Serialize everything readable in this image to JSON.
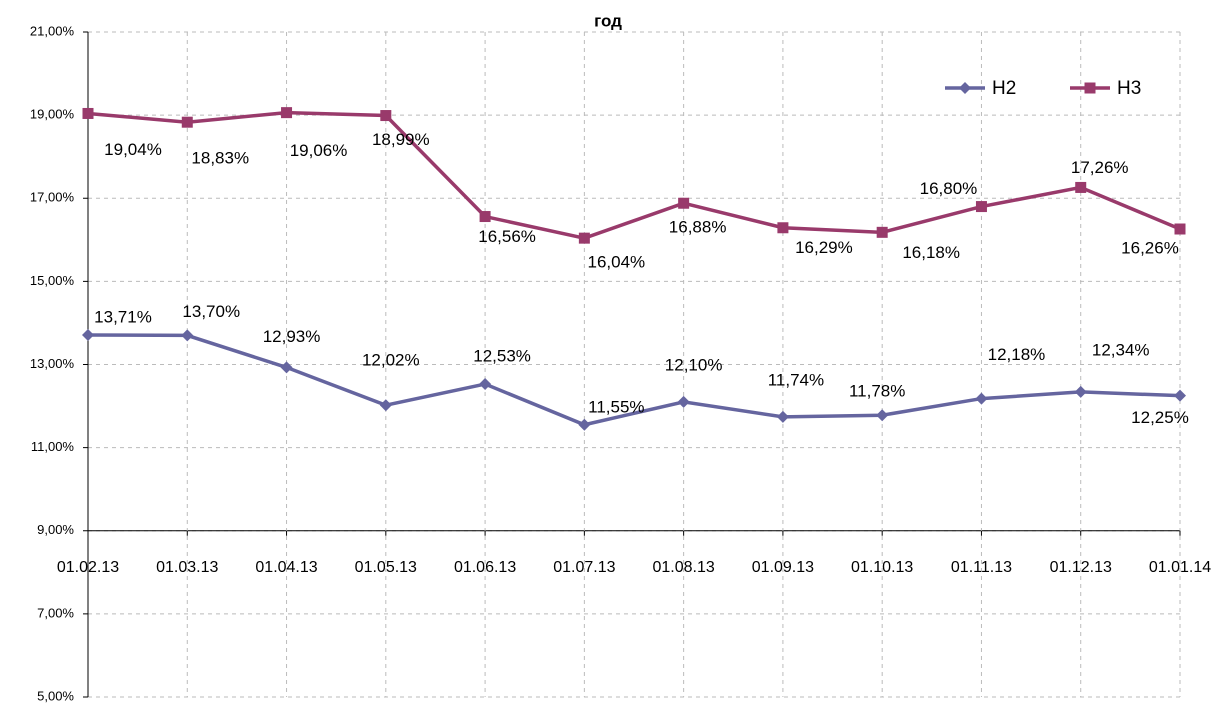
{
  "chart_data": {
    "type": "line",
    "title": "год",
    "categories": [
      "01.02.13",
      "01.03.13",
      "01.04.13",
      "01.05.13",
      "01.06.13",
      "01.07.13",
      "01.08.13",
      "01.09.13",
      "01.10.13",
      "01.11.13",
      "01.12.13",
      "01.01.14"
    ],
    "series": [
      {
        "name": "Н2",
        "color": "#65659f",
        "marker": "diamond",
        "values": [
          13.71,
          13.7,
          12.93,
          12.02,
          12.53,
          11.55,
          12.1,
          11.74,
          11.78,
          12.18,
          12.34,
          12.25
        ],
        "value_labels": [
          "13,71%",
          "13,70%",
          "12,93%",
          "12,02%",
          "12,53%",
          "11,55%",
          "12,10%",
          "11,74%",
          "11,78%",
          "12,18%",
          "12,34%",
          "12,25%"
        ]
      },
      {
        "name": "Н3",
        "color": "#993a6b",
        "marker": "square",
        "values": [
          19.04,
          18.83,
          19.06,
          18.99,
          16.56,
          16.04,
          16.88,
          16.29,
          16.18,
          16.8,
          17.26,
          16.26
        ],
        "value_labels": [
          "19,04%",
          "18,83%",
          "19,06%",
          "18,99%",
          "16,56%",
          "16,04%",
          "16,88%",
          "16,29%",
          "16,18%",
          "16,80%",
          "17,26%",
          "16,26%"
        ]
      }
    ],
    "ylim": [
      5,
      21
    ],
    "yticks": [
      {
        "value": 5,
        "label": "5,00%"
      },
      {
        "value": 7,
        "label": "7,00%"
      },
      {
        "value": 9,
        "label": "9,00%"
      },
      {
        "value": 11,
        "label": "11,00%"
      },
      {
        "value": 13,
        "label": "13,00%"
      },
      {
        "value": 15,
        "label": "15,00%"
      },
      {
        "value": 17,
        "label": "17,00%"
      },
      {
        "value": 19,
        "label": "19,00%"
      },
      {
        "value": 21,
        "label": "21,00%"
      }
    ],
    "x_axis_crosses": 9,
    "grid": true,
    "legend": "upper right"
  }
}
